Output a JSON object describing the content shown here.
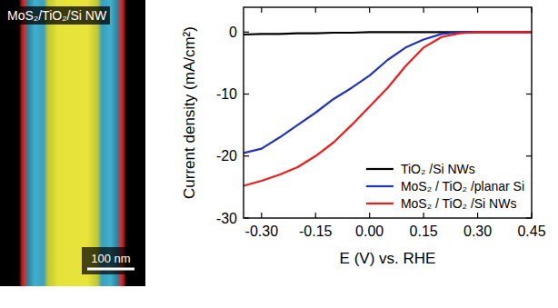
{
  "chart_data": {
    "type": "line",
    "x_label": "E (V) vs. RHE",
    "y_label": "Current density (mA/cm²)",
    "x": [
      -0.35,
      -0.3,
      -0.25,
      -0.2,
      -0.15,
      -0.1,
      -0.05,
      0.0,
      0.05,
      0.1,
      0.15,
      0.2,
      0.25,
      0.3,
      0.35,
      0.4,
      0.45
    ],
    "xlim": [
      -0.35,
      0.45
    ],
    "ylim": [
      -30,
      4
    ],
    "xticks": [
      {
        "value": -0.3,
        "label": "-0.30"
      },
      {
        "value": -0.15,
        "label": "-0.15"
      },
      {
        "value": 0,
        "label": "0.00"
      },
      {
        "value": 0.15,
        "label": "0.15"
      },
      {
        "value": 0.3,
        "label": "0.30"
      },
      {
        "value": 0.45,
        "label": "0.45"
      }
    ],
    "yticks": [
      -30,
      -20,
      -10,
      0
    ],
    "legend": "lower right",
    "series": [
      {
        "name": "TiO₂ /Si NWs",
        "color": "#000000",
        "values": [
          -0.4,
          -0.3,
          -0.3,
          -0.2,
          -0.2,
          -0.1,
          -0.1,
          0,
          0,
          0,
          0,
          0,
          0,
          0,
          0,
          0,
          0
        ]
      },
      {
        "name": "MoS₂ / TiO₂ /planar Si",
        "color": "#2233b8",
        "values": [
          -19.5,
          -18.8,
          -17.0,
          -15.0,
          -13.0,
          -10.8,
          -9.0,
          -7.0,
          -4.5,
          -2.5,
          -1.2,
          -0.3,
          0,
          0,
          0,
          0,
          0
        ]
      },
      {
        "name": "MoS₂ / TiO₂ /Si NWs",
        "color": "#ee1c1c",
        "values": [
          -24.8,
          -24.0,
          -23.0,
          -21.8,
          -20.0,
          -17.8,
          -15.0,
          -12.0,
          -9.0,
          -5.5,
          -2.5,
          -0.8,
          -0.2,
          0,
          0,
          0,
          0
        ]
      }
    ]
  },
  "image_panel": {
    "label": "MoS₂/TiO₂/Si NW",
    "scale_bar": "100 nm"
  }
}
